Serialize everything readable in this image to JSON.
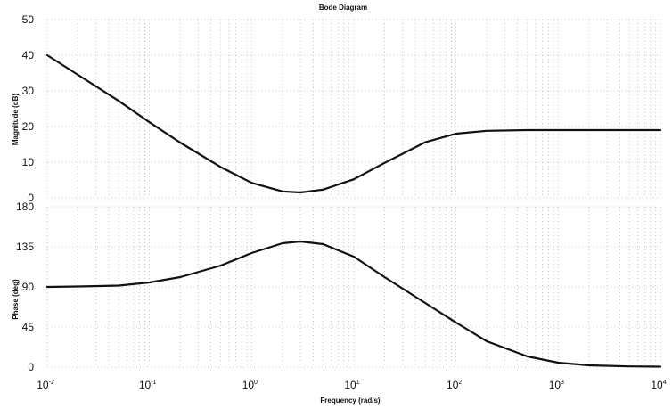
{
  "chart_data": [
    {
      "panel": "magnitude",
      "type": "line",
      "title": "Bode Diagram",
      "ylabel": "Magnitude (dB)",
      "xscale": "log",
      "xlim": [
        0.01,
        10000
      ],
      "ylim": [
        0,
        50
      ],
      "yticks": [
        0,
        10,
        20,
        30,
        40,
        50
      ],
      "grid": true,
      "series": [
        {
          "x": [
            0.01,
            0.02,
            0.05,
            0.1,
            0.2,
            0.5,
            1,
            2,
            3,
            5,
            10,
            20,
            50,
            100,
            200,
            500,
            1000,
            10000
          ],
          "y": [
            40,
            34.5,
            27.2,
            21.2,
            15.5,
            8.6,
            4.2,
            1.8,
            1.5,
            2.3,
            5.2,
            9.8,
            15.6,
            18.0,
            18.8,
            19.0,
            19.0,
            19.0
          ]
        }
      ]
    },
    {
      "panel": "phase",
      "type": "line",
      "ylabel": "Phase (deg)",
      "xlabel": "Frequency (rad/s)",
      "xscale": "log",
      "xlim": [
        0.01,
        10000
      ],
      "ylim": [
        0,
        180
      ],
      "yticks": [
        0,
        45,
        90,
        135,
        180
      ],
      "xticks": [
        {
          "base": "10",
          "exp": "-2"
        },
        {
          "base": "10",
          "exp": "-1"
        },
        {
          "base": "10",
          "exp": "0"
        },
        {
          "base": "10",
          "exp": "1"
        },
        {
          "base": "10",
          "exp": "2"
        },
        {
          "base": "10",
          "exp": "3"
        },
        {
          "base": "10",
          "exp": "4"
        }
      ],
      "grid": true,
      "series": [
        {
          "x": [
            0.01,
            0.02,
            0.05,
            0.1,
            0.2,
            0.5,
            1,
            2,
            3,
            5,
            10,
            20,
            50,
            100,
            200,
            500,
            1000,
            2000,
            5000,
            10000
          ],
          "y": [
            90,
            90.5,
            91.5,
            95,
            101,
            114,
            128,
            139,
            141,
            138,
            124,
            101,
            72,
            50,
            29,
            12,
            5,
            2,
            0.8,
            0.5
          ]
        }
      ]
    }
  ]
}
